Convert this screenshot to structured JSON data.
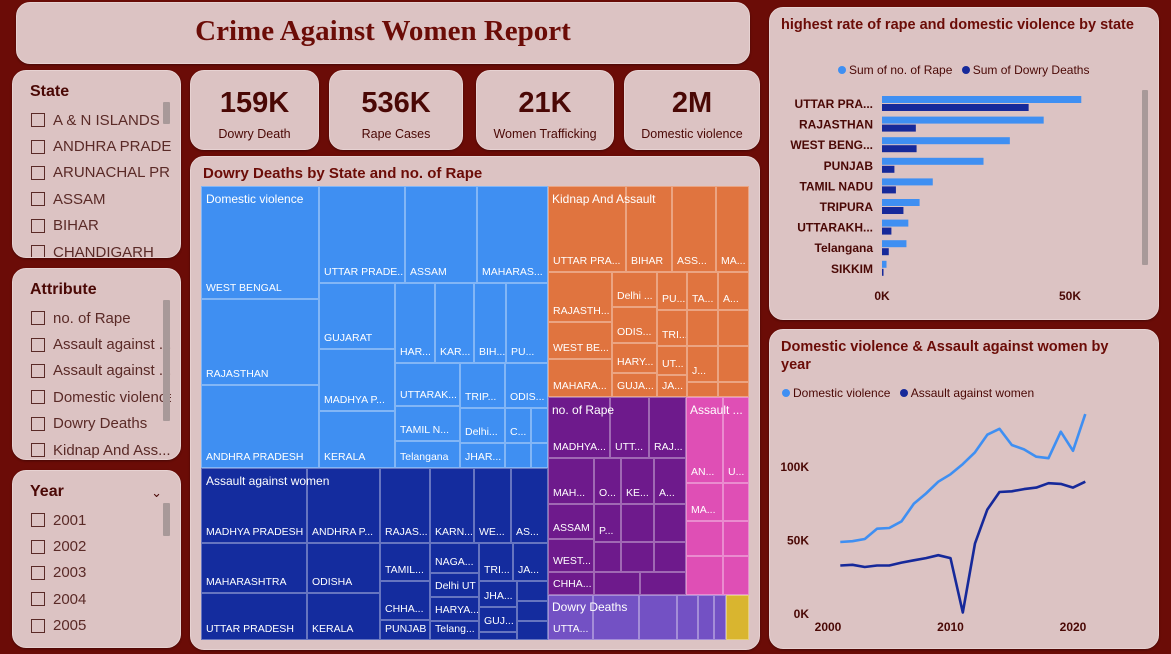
{
  "title": "Crime Against Women Report",
  "slicers": [
    {
      "title": "State",
      "items": [
        "A & N ISLANDS",
        "ANDHRA PRADE...",
        "ARUNACHAL PR...",
        "ASSAM",
        "BIHAR",
        "CHANDIGARH"
      ]
    },
    {
      "title": "Attribute",
      "items": [
        "no. of Rape",
        "Assault against ...",
        "Assault against ...",
        "Domestic violence",
        "Dowry Deaths",
        "Kidnap And Ass..."
      ]
    },
    {
      "title": "Year",
      "items": [
        "2001",
        "2002",
        "2003",
        "2004",
        "2005"
      ]
    }
  ],
  "kpis": [
    {
      "value": "159K",
      "label": "Dowry Death"
    },
    {
      "value": "536K",
      "label": "Rape Cases"
    },
    {
      "value": "21K",
      "label": "Women Trafficking"
    },
    {
      "value": "2M",
      "label": "Domestic violence"
    }
  ],
  "colors": {
    "domestic": "#3f8ff2",
    "assault": "#142c9e",
    "kidnap": "#e0743f",
    "rape": "#6e1a8c",
    "assault2": "#df4fb5",
    "dowry": "#7351c4",
    "gold": "#d9b52f",
    "series_light": "#3f8ff2",
    "series_dark": "#16299a"
  },
  "treemap": {
    "title": "Dowry Deaths by State and no. of Rape",
    "groups": [
      {
        "name": "Domestic violence",
        "labels": [
          "WEST BENGAL",
          "UTTAR PRADE...",
          "ASSAM",
          "MAHARAS...",
          "RAJASTHAN",
          "GUJARAT",
          "HAR...",
          "KAR...",
          "BIH...",
          "PU...",
          "MADHYA P...",
          "UTTARAK...",
          "TRIP...",
          "ODIS...",
          "TAMIL N...",
          "Delhi...",
          "C...",
          "ANDHRA PRADESH",
          "KERALA",
          "Telangana",
          "JHAR..."
        ]
      },
      {
        "name": "Assault against women",
        "labels": [
          "MADHYA PRADESH",
          "ANDHRA P...",
          "RAJAS...",
          "KARN...",
          "WE...",
          "AS...",
          "MAHARASHTRA",
          "ODISHA",
          "TAMIL...",
          "NAGA...",
          "TRI...",
          "JA...",
          "Delhi UT",
          "CHHA...",
          "HARYA...",
          "JHA...",
          "GUJ...",
          "UTTAR PRADESH",
          "KERALA",
          "PUNJAB",
          "Telang..."
        ]
      },
      {
        "name": "Kidnap And Assault",
        "labels": [
          "UTTAR PRA...",
          "BIHAR",
          "ASS...",
          "MA...",
          "Delhi ...",
          "PU...",
          "TA...",
          "A...",
          "RAJASTH...",
          "ODIS...",
          "TRI...",
          "WEST BE...",
          "HARY...",
          "UT...",
          "J...",
          "MAHARA...",
          "GUJA...",
          "JA..."
        ]
      },
      {
        "name": "no. of Rape",
        "labels": [
          "MADHYA...",
          "UTT...",
          "RAJ...",
          "MAH...",
          "O...",
          "KE...",
          "A...",
          "ASSAM",
          "P...",
          "WEST...",
          "CHHA..."
        ]
      },
      {
        "name": "Assault ...",
        "labels": [
          "AN...",
          "U...",
          "MA..."
        ]
      },
      {
        "name": "Dowry Deaths",
        "labels": [
          "UTTA..."
        ]
      }
    ]
  },
  "bar_chart": {
    "title": "highest rate of rape and domestic violence by state",
    "legend": [
      "Sum of  no. of Rape",
      "Sum of Dowry Deaths"
    ],
    "x_ticks": [
      "0K",
      "50K"
    ]
  },
  "line_chart": {
    "title": "Domestic violence & Assault against women by year",
    "legend": [
      "Domestic violence",
      "Assault against women"
    ],
    "y_ticks": [
      "0K",
      "50K",
      "100K"
    ],
    "x_ticks": [
      "2000",
      "2010",
      "2020"
    ]
  },
  "chart_data": [
    {
      "type": "bar",
      "title": "highest rate of rape and domestic violence by state",
      "categories": [
        "UTTAR PRA...",
        "RAJASTHAN",
        "WEST BENG...",
        "PUNJAB",
        "TAMIL NADU",
        "TRIPURA",
        "UTTARAKH...",
        "Telangana",
        "SIKKIM"
      ],
      "series": [
        {
          "name": "Sum of  no. of Rape",
          "values": [
            53000,
            43000,
            34000,
            27000,
            13500,
            10000,
            7000,
            6500,
            1200
          ]
        },
        {
          "name": "Sum of Dowry Deaths",
          "values": [
            39000,
            9000,
            9200,
            3300,
            3700,
            5700,
            2500,
            1800,
            400
          ]
        }
      ],
      "xlim": [
        0,
        60000
      ]
    },
    {
      "type": "line",
      "title": "Domestic violence & Assault against women by year",
      "x": [
        2001,
        2002,
        2003,
        2004,
        2005,
        2006,
        2007,
        2008,
        2009,
        2010,
        2011,
        2012,
        2013,
        2014,
        2015,
        2016,
        2017,
        2018,
        2019,
        2020,
        2021
      ],
      "series": [
        {
          "name": "Domestic violence",
          "values": [
            49000,
            49500,
            51000,
            58000,
            58500,
            63000,
            75000,
            82000,
            90000,
            95000,
            102000,
            110000,
            122000,
            126000,
            115000,
            112000,
            107000,
            106000,
            124000,
            111000,
            136000
          ]
        },
        {
          "name": "Assault against women",
          "values": [
            33000,
            33500,
            32000,
            33000,
            33000,
            35000,
            36500,
            38000,
            40000,
            38000,
            1000,
            48000,
            71000,
            83000,
            83500,
            85000,
            86000,
            89000,
            88500,
            86000,
            90000
          ]
        }
      ],
      "ylim": [
        0,
        150000
      ],
      "xlim": [
        2000,
        2022
      ]
    }
  ]
}
